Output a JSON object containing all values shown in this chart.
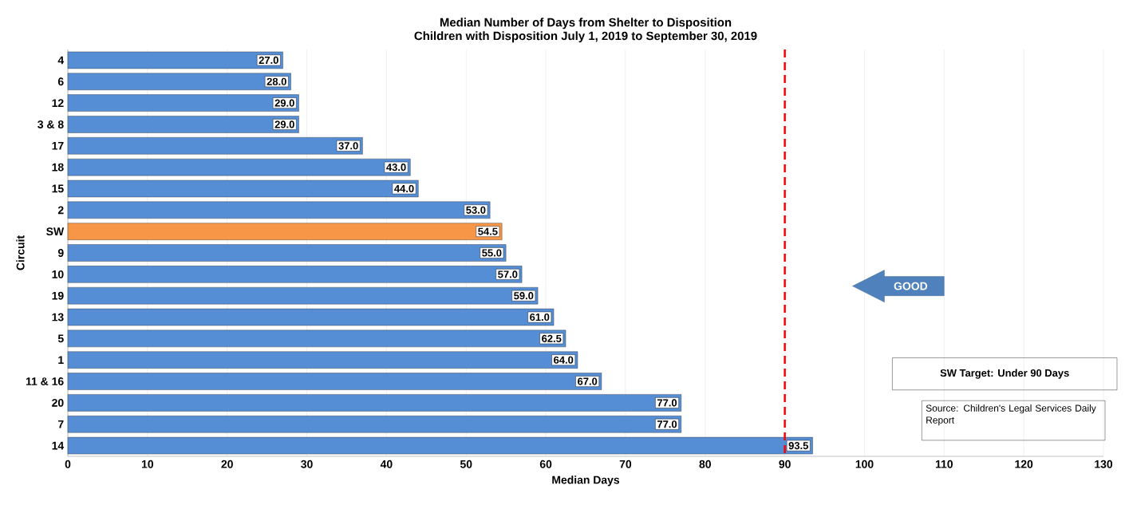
{
  "chart_data": {
    "type": "bar",
    "orientation": "horizontal",
    "title": "Median Number of Days from Shelter to Disposition",
    "subtitle": "Children with Disposition July 1, 2019 to September 30, 2019",
    "xlabel": "Median Days",
    "ylabel": "Circuit",
    "categories": [
      "4",
      "6",
      "12",
      "3 & 8",
      "17",
      "18",
      "15",
      "2",
      "SW",
      "9",
      "10",
      "19",
      "13",
      "5",
      "1",
      "11 & 16",
      "20",
      "7",
      "14"
    ],
    "values": [
      27.0,
      28.0,
      29.0,
      29.0,
      37.0,
      43.0,
      44.0,
      53.0,
      54.5,
      55.0,
      57.0,
      59.0,
      61.0,
      62.5,
      64.0,
      67.0,
      77.0,
      77.0,
      93.5
    ],
    "value_labels": [
      "27.0",
      "28.0",
      "29.0",
      "29.0",
      "37.0",
      "43.0",
      "44.0",
      "53.0",
      "54.5",
      "55.0",
      "57.0",
      "59.0",
      "61.0",
      "62.5",
      "64.0",
      "67.0",
      "77.0",
      "77.0",
      "93.5"
    ],
    "colors": [
      "#558ed5",
      "#558ed5",
      "#558ed5",
      "#558ed5",
      "#558ed5",
      "#558ed5",
      "#558ed5",
      "#558ed5",
      "#f79646",
      "#558ed5",
      "#558ed5",
      "#558ed5",
      "#558ed5",
      "#558ed5",
      "#558ed5",
      "#558ed5",
      "#558ed5",
      "#558ed5",
      "#558ed5"
    ],
    "xlim": [
      0,
      130
    ],
    "xticks": [
      0,
      10,
      20,
      30,
      40,
      50,
      60,
      70,
      80,
      90,
      100,
      110,
      120,
      130
    ],
    "grid": "x",
    "ref_lines": [
      {
        "axis": "x",
        "value": 90,
        "color": "#ff0000",
        "line_style": "dashed"
      }
    ],
    "annotations": [
      "GOOD",
      "SW Target: Under 90 Days",
      "Source: Children's Legal Services Daily Report"
    ]
  }
}
